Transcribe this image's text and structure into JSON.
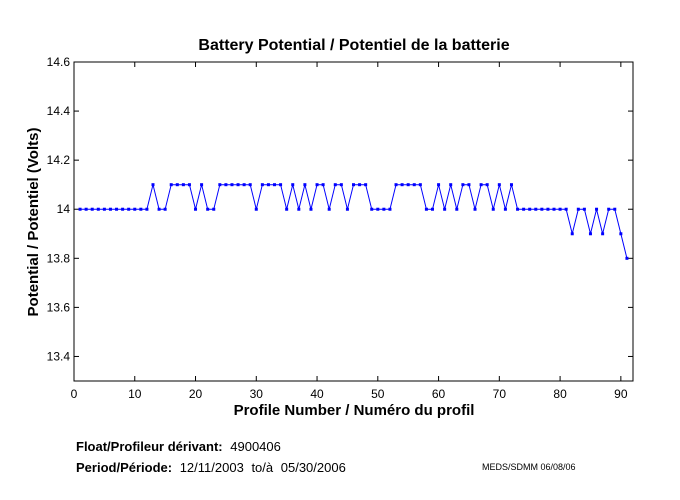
{
  "chart_data": {
    "type": "line",
    "title": "Battery Potential / Potentiel de la batterie",
    "xlabel": "Profile Number / Numéro du profil",
    "ylabel": "Potential / Potentiel (Volts)",
    "xlim": [
      0,
      92
    ],
    "ylim": [
      13.3,
      14.6
    ],
    "xticks": [
      0,
      10,
      20,
      30,
      40,
      50,
      60,
      70,
      80,
      90
    ],
    "xtick_labels": [
      "0",
      "10",
      "20",
      "30",
      "40",
      "50",
      "60",
      "70",
      "80",
      "90"
    ],
    "yticks": [
      13.4,
      13.6,
      13.8,
      14.0,
      14.2,
      14.4,
      14.6
    ],
    "ytick_labels": [
      "13.4",
      "13.6",
      "13.8",
      "14",
      "14.2",
      "14.4",
      "14.6"
    ],
    "grid": false,
    "series_color": "#0000ff",
    "series": [
      {
        "x": [
          1,
          2,
          3,
          4,
          5,
          6,
          7,
          8,
          9,
          10,
          11,
          12,
          13,
          14,
          15,
          16,
          17,
          18,
          19,
          20,
          21,
          22,
          23,
          24,
          25,
          26,
          27,
          28,
          29,
          30,
          31,
          32,
          33,
          34,
          35,
          36,
          37,
          38,
          39,
          40,
          41,
          42,
          43,
          44,
          45,
          46,
          47,
          48,
          49,
          50,
          51,
          52,
          53,
          54,
          55,
          56,
          57,
          58,
          59,
          60,
          61,
          62,
          63,
          64,
          65,
          66,
          67,
          68,
          69,
          70,
          71,
          72,
          73,
          74,
          75,
          76,
          77,
          78,
          79,
          80,
          81,
          82,
          83,
          84,
          85,
          86,
          87,
          88,
          89,
          90,
          91
        ],
        "values": [
          14.0,
          14.0,
          14.0,
          14.0,
          14.0,
          14.0,
          14.0,
          14.0,
          14.0,
          14.0,
          14.0,
          14.0,
          14.1,
          14.0,
          14.0,
          14.1,
          14.1,
          14.1,
          14.1,
          14.0,
          14.1,
          14.0,
          14.0,
          14.1,
          14.1,
          14.1,
          14.1,
          14.1,
          14.1,
          14.0,
          14.1,
          14.1,
          14.1,
          14.1,
          14.0,
          14.1,
          14.0,
          14.1,
          14.0,
          14.1,
          14.1,
          14.0,
          14.1,
          14.1,
          14.0,
          14.1,
          14.1,
          14.1,
          14.0,
          14.0,
          14.0,
          14.0,
          14.1,
          14.1,
          14.1,
          14.1,
          14.1,
          14.0,
          14.0,
          14.1,
          14.0,
          14.1,
          14.0,
          14.1,
          14.1,
          14.0,
          14.1,
          14.1,
          14.0,
          14.1,
          14.0,
          14.1,
          14.0,
          14.0,
          14.0,
          14.0,
          14.0,
          14.0,
          14.0,
          14.0,
          14.0,
          13.9,
          14.0,
          14.0,
          13.9,
          14.0,
          13.9,
          14.0,
          14.0,
          13.9,
          13.8
        ]
      }
    ]
  },
  "footer": {
    "float_label": "Float/Profileur dérivant:",
    "float_value": "4900406",
    "period_label": "Period/Période:",
    "period_start": "12/11/2003",
    "period_sep": "to/à",
    "period_end": "05/30/2006",
    "meds": "MEDS/SDMM  06/08/06"
  }
}
